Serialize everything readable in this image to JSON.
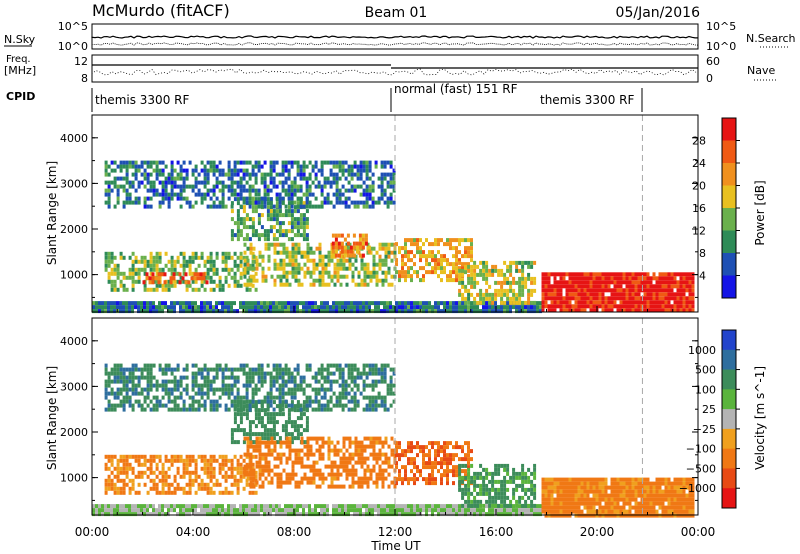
{
  "header": {
    "station": "McMurdo (fitACF)",
    "beam": "Beam 01",
    "date": "05/Jan/2016"
  },
  "top_panels": {
    "nsky_label": "N.Sky",
    "nsky_left_ticks": [
      "10^5",
      "10^0"
    ],
    "nsky_right_ticks": [
      "10^5",
      "10^0"
    ],
    "nsearch_label": "N.Search",
    "freq_label_line1": "Freq.",
    "freq_label_line2": "[MHz]",
    "freq_ticks": [
      "12",
      "8"
    ],
    "nave_ticks": [
      "60",
      "0"
    ],
    "nave_label": "Nave",
    "cpid_label": "CPID",
    "cpid_segments": [
      {
        "label": "themis 3300 RF",
        "start_hour": 0,
        "end_hour": 12
      },
      {
        "label": "normal (fast) 151 RF",
        "start_hour": 12,
        "end_hour": 22
      },
      {
        "label": "themis 3300 RF",
        "start_hour": 14.5,
        "end_hour": 22
      }
    ]
  },
  "chart_data": [
    {
      "type": "heatmap",
      "title": "",
      "xlabel": "Time UT",
      "ylabel": "Slant Range [km]",
      "xlim": [
        0,
        24
      ],
      "ylim": [
        180,
        4500
      ],
      "yticks": [
        "1000",
        "2000",
        "3000",
        "4000"
      ],
      "colorbar": {
        "label": "Power [dB]",
        "ticks": [
          "4",
          "8",
          "12",
          "16",
          "20",
          "24",
          "28"
        ],
        "colors": [
          "#1414e6",
          "#1e50b4",
          "#2e8b57",
          "#6ab04c",
          "#e8c020",
          "#f0901e",
          "#f05a14",
          "#e61414"
        ]
      },
      "regions": [
        {
          "t0": 0.0,
          "t1": 17.8,
          "r0": 200,
          "r1": 420,
          "level": 8
        },
        {
          "t0": 0.5,
          "t1": 6.5,
          "r0": 700,
          "r1": 1500,
          "level": 14
        },
        {
          "t0": 2.0,
          "t1": 4.5,
          "r0": 850,
          "r1": 1050,
          "level": 26
        },
        {
          "t0": 5.5,
          "t1": 8.5,
          "r0": 1800,
          "r1": 2700,
          "level": 12
        },
        {
          "t0": 6.0,
          "t1": 12.0,
          "r0": 800,
          "r1": 1700,
          "level": 16
        },
        {
          "t0": 9.5,
          "t1": 11.0,
          "r0": 1400,
          "r1": 1900,
          "level": 24
        },
        {
          "t0": 12.0,
          "t1": 15.0,
          "r0": 900,
          "r1": 1800,
          "level": 20
        },
        {
          "t0": 14.5,
          "t1": 17.5,
          "r0": 400,
          "r1": 1300,
          "level": 16
        },
        {
          "t0": 17.8,
          "t1": 23.8,
          "r0": 200,
          "r1": 1050,
          "level": 30
        },
        {
          "t0": 0.5,
          "t1": 12.0,
          "r0": 2500,
          "r1": 3500,
          "level": 8
        }
      ]
    },
    {
      "type": "heatmap",
      "title": "",
      "xlabel": "Time UT",
      "ylabel": "Slant Range [km]",
      "xlim": [
        0,
        24
      ],
      "ylim": [
        180,
        4500
      ],
      "xticks": [
        "00:00",
        "04:00",
        "08:00",
        "12:00",
        "16:00",
        "20:00",
        "00:00"
      ],
      "yticks": [
        "1000",
        "2000",
        "3000",
        "4000"
      ],
      "colorbar": {
        "label": "Velocity [m s^-1]",
        "ticks": [
          "1000",
          "500",
          "100",
          "25",
          "−25",
          "−100",
          "−500",
          "−1000"
        ],
        "colors": [
          "#2244cc",
          "#2e6e9e",
          "#3c8c5a",
          "#5ab43c",
          "#b4b4b4",
          "#f0a01e",
          "#f07814",
          "#e84a14",
          "#e61414"
        ]
      },
      "regions": [
        {
          "t0": 0.0,
          "t1": 17.8,
          "r0": 200,
          "r1": 420,
          "level": 25
        },
        {
          "t0": 0.5,
          "t1": 6.5,
          "r0": 700,
          "r1": 1500,
          "level": -120
        },
        {
          "t0": 5.5,
          "t1": 8.5,
          "r0": 1800,
          "r1": 2700,
          "level": 300
        },
        {
          "t0": 6.0,
          "t1": 12.0,
          "r0": 800,
          "r1": 1900,
          "level": -200
        },
        {
          "t0": 12.0,
          "t1": 15.0,
          "r0": 900,
          "r1": 1800,
          "level": -450
        },
        {
          "t0": 14.5,
          "t1": 17.5,
          "r0": 400,
          "r1": 1300,
          "level": 150
        },
        {
          "t0": 17.8,
          "t1": 23.8,
          "r0": 200,
          "r1": 1000,
          "level": -150
        },
        {
          "t0": 0.5,
          "t1": 12.0,
          "r0": 2500,
          "r1": 3500,
          "level": 400
        }
      ]
    }
  ]
}
